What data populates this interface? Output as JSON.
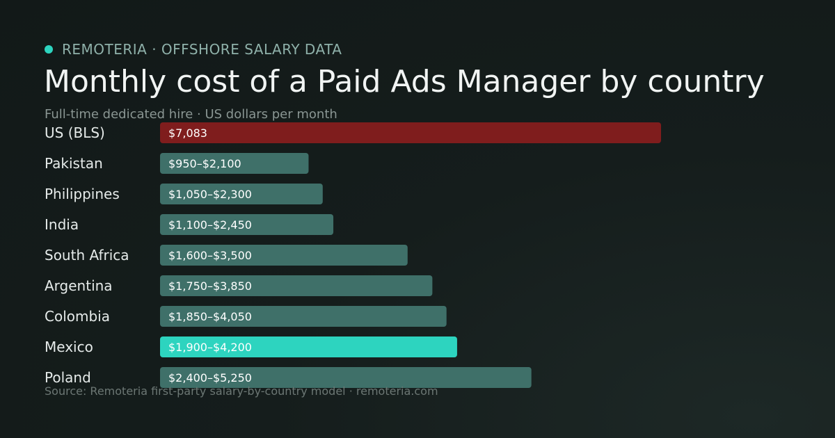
{
  "brand": {
    "text": "REMOTERIA · OFFSHORE SALARY DATA"
  },
  "colors": {
    "accent": "#2dd4bf",
    "us_bar": "#7f1d1d",
    "us_label": "#fecaca",
    "default_bar": "#3f7069",
    "highlight_bar": "#2dd4bf",
    "highlight_label": "#2dd4bf"
  },
  "chart_data": {
    "type": "bar",
    "orientation": "horizontal",
    "title": "Monthly cost of a Paid Ads Manager by country",
    "subtitle": "Full-time dedicated hire · US dollars per month",
    "xlim": [
      0,
      7083
    ],
    "grid": false,
    "categories": [
      "US (BLS)",
      "Pakistan",
      "Philippines",
      "India",
      "South Africa",
      "Argentina",
      "Colombia",
      "Mexico",
      "Poland"
    ],
    "values": [
      7083,
      2100,
      2300,
      2450,
      3500,
      3850,
      4050,
      4200,
      5250
    ],
    "ranges": [
      [
        7083,
        7083
      ],
      [
        950,
        2100
      ],
      [
        1050,
        2300
      ],
      [
        1100,
        2450
      ],
      [
        1600,
        3500
      ],
      [
        1750,
        3850
      ],
      [
        1850,
        4050
      ],
      [
        1900,
        4200
      ],
      [
        2400,
        5250
      ]
    ],
    "data_labels": [
      "$7,083",
      "$950–$2,100",
      "$1,050–$2,300",
      "$1,100–$2,450",
      "$1,600–$3,500",
      "$1,750–$3,850",
      "$1,850–$4,050",
      "$1,900–$4,200",
      "$2,400–$5,250"
    ],
    "styles": [
      "us",
      "default",
      "default",
      "default",
      "default",
      "default",
      "default",
      "highlight",
      "default"
    ]
  },
  "footer": {
    "source": "Source: Remoteria first-party salary-by-country model · remoteria.com"
  }
}
